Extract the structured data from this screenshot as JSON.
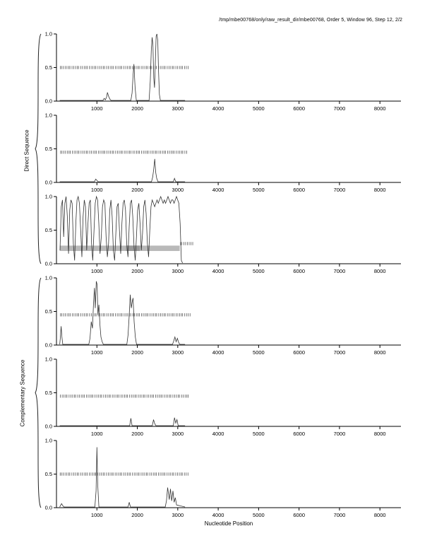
{
  "header": {
    "title": "/tmp/mbe00768/only/raw_result_dir/mbe00768, Order 5, Window 96, Step 12, 2/2"
  },
  "groups": [
    {
      "label": "Direct Sequence"
    },
    {
      "label": "Complementary Sequence"
    }
  ],
  "axis": {
    "x_label": "Nucleotide Position"
  },
  "chart_data": [
    {
      "name": "direct-frame-1",
      "type": "line",
      "x_range": [
        0,
        8520
      ],
      "y_range": [
        0,
        1
      ],
      "x_ticks": [
        1000,
        2000,
        3000,
        4000,
        5000,
        6000,
        7000,
        8000
      ],
      "y_ticks": [
        0,
        0.5,
        1
      ],
      "marker_row": {
        "y": 0.5,
        "x": [
          95,
          128,
          171,
          215,
          259,
          301,
          333,
          385,
          429,
          473,
          515,
          547,
          599,
          643,
          687,
          729,
          761,
          813,
          857,
          901,
          943,
          975,
          1027,
          1071,
          1115,
          1157,
          1189,
          1241,
          1285,
          1329,
          1371,
          1403,
          1455,
          1499,
          1543,
          1585,
          1617,
          1669,
          1713,
          1757,
          1799,
          1831,
          1883,
          1927,
          1971,
          2013,
          2045,
          2097,
          2141,
          2185,
          2227,
          2259,
          2311,
          2355,
          2399,
          2441,
          2473,
          2525,
          2569,
          2613,
          2655,
          2687,
          2739,
          2783,
          2827,
          2869,
          2901,
          2953,
          2997,
          3041,
          3083,
          3115,
          3167,
          3211,
          3255
        ]
      },
      "series": [
        {
          "name": "coding-potential",
          "x": [
            80,
            1150,
            1180,
            1210,
            1240,
            1260,
            1290,
            1320,
            1350,
            1840,
            1870,
            1895,
            1915,
            1945,
            1975,
            2290,
            2320,
            2345,
            2365,
            2385,
            2405,
            2425,
            2445,
            2465,
            2485,
            2505,
            2525,
            2545,
            2570,
            3180
          ],
          "y": [
            0.01,
            0.01,
            0.04,
            0.02,
            0.06,
            0.13,
            0.07,
            0.03,
            0.01,
            0.01,
            0.12,
            0.38,
            0.55,
            0.2,
            0.01,
            0.01,
            0.3,
            0.75,
            0.95,
            0.85,
            0.35,
            0.2,
            0.55,
            0.97,
            1.0,
            0.9,
            0.45,
            0.1,
            0.01,
            0.01
          ]
        }
      ]
    },
    {
      "name": "direct-frame-2",
      "type": "line",
      "x_range": [
        0,
        8520
      ],
      "y_range": [
        0,
        1
      ],
      "x_ticks": [
        1000,
        2000,
        3000,
        4000,
        5000,
        6000,
        7000,
        8000
      ],
      "y_ticks": [
        0,
        0.5,
        1
      ],
      "marker_row": {
        "y": 0.45,
        "x": [
          104,
          137,
          180,
          224,
          268,
          310,
          342,
          394,
          438,
          482,
          524,
          556,
          608,
          652,
          696,
          738,
          770,
          822,
          866,
          910,
          952,
          984,
          1036,
          1080,
          1124,
          1166,
          1198,
          1250,
          1294,
          1338,
          1380,
          1412,
          1464,
          1508,
          1552,
          1594,
          1626,
          1678,
          1722,
          1766,
          1808,
          1840,
          1892,
          1936,
          1980,
          2022,
          2054,
          2106,
          2150,
          2194,
          2236,
          2268,
          2320,
          2364,
          2408,
          2450,
          2482,
          2534,
          2578,
          2622,
          2664,
          2696,
          2748,
          2792,
          2836,
          2878,
          2910,
          2962,
          3006,
          3050,
          3092,
          3124,
          3176,
          3220
        ]
      },
      "series": [
        {
          "name": "coding-potential",
          "x": [
            80,
            940,
            970,
            1000,
            1030,
            2350,
            2380,
            2405,
            2430,
            2455,
            2480,
            2510,
            2890,
            2920,
            2950,
            3180
          ],
          "y": [
            0.01,
            0.01,
            0.05,
            0.03,
            0.01,
            0.01,
            0.08,
            0.2,
            0.35,
            0.15,
            0.06,
            0.01,
            0.01,
            0.06,
            0.01,
            0.01
          ]
        }
      ]
    },
    {
      "name": "direct-frame-3",
      "type": "line",
      "x_range": [
        0,
        8520
      ],
      "y_range": [
        0,
        1
      ],
      "x_ticks": [
        1000,
        2000,
        3000,
        4000,
        5000,
        6000,
        7000,
        8000
      ],
      "y_ticks": [
        0,
        0.5,
        1
      ],
      "marker_row": {
        "y": 0.3,
        "x": [
          3066,
          3102,
          3150,
          3194,
          3238,
          3282,
          3326,
          3370
        ]
      },
      "bands": [
        {
          "x0": 82,
          "x1": 3050,
          "y0": 0.19,
          "y1": 0.27,
          "color": "#b9b9b9"
        },
        {
          "x0": 1720,
          "x1": 2060,
          "y0": 0.19,
          "y1": 0.27,
          "color": "#9a9a9a"
        }
      ],
      "series": [
        {
          "name": "coding-potential",
          "x_start": 88,
          "x_step": 30,
          "y": [
            0.2,
            0.85,
            0.95,
            0.4,
            0.9,
            1.0,
            0.7,
            0.15,
            0.8,
            0.95,
            0.9,
            0.3,
            0.05,
            0.6,
            0.95,
            1.0,
            0.9,
            0.5,
            0.1,
            0.7,
            0.95,
            0.85,
            0.2,
            0.6,
            0.9,
            0.95,
            0.3,
            0.05,
            0.5,
            0.9,
            1.0,
            0.95,
            0.6,
            0.15,
            0.4,
            0.85,
            0.95,
            0.9,
            0.4,
            0.1,
            0.3,
            0.8,
            0.95,
            0.7,
            0.2,
            0.05,
            0.45,
            0.85,
            0.9,
            0.5,
            0.15,
            0.6,
            0.9,
            0.95,
            0.8,
            0.3,
            0.1,
            0.55,
            0.9,
            0.95,
            0.7,
            0.25,
            0.05,
            0.4,
            0.8,
            0.9,
            0.6,
            0.2,
            0.45,
            0.85,
            0.95,
            0.75,
            0.3,
            0.1,
            0.5,
            0.85,
            0.95,
            0.9,
            0.85,
            0.9,
            0.95,
            0.9,
            0.95,
            1.0,
            0.95,
            0.9,
            0.95,
            0.9,
            0.95,
            1.0,
            0.95,
            0.9,
            0.95,
            0.95,
            0.9,
            0.95,
            1.0,
            0.95,
            0.9,
            0.6,
            0.05,
            0.01
          ]
        }
      ]
    },
    {
      "name": "complementary-frame-1",
      "type": "line",
      "x_range": [
        0,
        8520
      ],
      "y_range": [
        0,
        1
      ],
      "x_ticks": [
        1000,
        2000,
        3000,
        4000,
        5000,
        6000,
        7000,
        8000
      ],
      "y_ticks": [
        0,
        0.5,
        1
      ],
      "marker_row": {
        "y": 0.45,
        "x": [
          100,
          133,
          176,
          220,
          264,
          306,
          338,
          390,
          434,
          478,
          520,
          552,
          604,
          648,
          692,
          734,
          766,
          818,
          862,
          906,
          948,
          980,
          1032,
          1076,
          1120,
          1162,
          1194,
          1246,
          1290,
          1334,
          1376,
          1408,
          1460,
          1504,
          1548,
          1590,
          1622,
          1674,
          1718,
          1762,
          1804,
          1836,
          1888,
          1932,
          1976,
          2018,
          2050,
          2102,
          2146,
          2190,
          2232,
          2264,
          2316,
          2360,
          2404,
          2446,
          2478,
          2530,
          2574,
          2618,
          2660,
          2692,
          2744,
          2788,
          2832,
          2874,
          2906,
          2958,
          3002,
          3046,
          3088,
          3120,
          3172,
          3216,
          3260,
          3304
        ]
      },
      "series": [
        {
          "name": "coding-potential",
          "x": [
            80,
            95,
            115,
            135,
            155,
            800,
            830,
            860,
            890,
            915,
            940,
            960,
            985,
            1005,
            1025,
            1050,
            1075,
            1100,
            1130,
            1160,
            1740,
            1770,
            1800,
            1825,
            1850,
            1875,
            1895,
            1920,
            1950,
            1980,
            2870,
            2900,
            2930,
            2960,
            2990,
            3020,
            3050,
            3180
          ],
          "y": [
            0.01,
            0.1,
            0.28,
            0.12,
            0.01,
            0.01,
            0.1,
            0.35,
            0.25,
            0.6,
            0.85,
            0.55,
            0.95,
            0.9,
            0.45,
            0.6,
            0.3,
            0.12,
            0.05,
            0.01,
            0.01,
            0.15,
            0.45,
            0.75,
            0.55,
            0.65,
            0.7,
            0.35,
            0.12,
            0.01,
            0.01,
            0.06,
            0.12,
            0.05,
            0.1,
            0.04,
            0.01,
            0.01
          ]
        }
      ]
    },
    {
      "name": "complementary-frame-2",
      "type": "line",
      "x_range": [
        0,
        8520
      ],
      "y_range": [
        0,
        1
      ],
      "x_ticks": [
        1000,
        2000,
        3000,
        4000,
        5000,
        6000,
        7000,
        8000
      ],
      "y_ticks": [
        0,
        0.5,
        1
      ],
      "marker_row": {
        "y": 0.45,
        "x": [
          98,
          142,
          186,
          228,
          260,
          312,
          356,
          400,
          442,
          474,
          526,
          570,
          614,
          656,
          688,
          740,
          784,
          828,
          870,
          902,
          954,
          998,
          1042,
          1084,
          1116,
          1168,
          1212,
          1256,
          1298,
          1330,
          1382,
          1426,
          1470,
          1512,
          1544,
          1596,
          1640,
          1684,
          1726,
          1758,
          1810,
          1854,
          1898,
          1940,
          1972,
          2024,
          2068,
          2112,
          2154,
          2186,
          2238,
          2282,
          2326,
          2368,
          2400,
          2452,
          2496,
          2540,
          2582,
          2614,
          2666,
          2710,
          2754,
          2796,
          2828,
          2880,
          2924,
          2968,
          3010,
          3042,
          3094,
          3138,
          3182,
          3224,
          3256
        ]
      },
      "series": [
        {
          "name": "coding-potential",
          "x": [
            80,
            1810,
            1840,
            1870,
            2370,
            2400,
            2430,
            2460,
            2890,
            2920,
            2950,
            2980,
            3010,
            3180
          ],
          "y": [
            0.01,
            0.01,
            0.12,
            0.01,
            0.01,
            0.1,
            0.04,
            0.01,
            0.01,
            0.13,
            0.05,
            0.1,
            0.01,
            0.01
          ]
        }
      ]
    },
    {
      "name": "complementary-frame-3",
      "type": "line",
      "x_range": [
        0,
        8520
      ],
      "y_range": [
        0,
        1
      ],
      "x_ticks": [
        1000,
        2000,
        3000,
        4000,
        5000,
        6000,
        7000,
        8000
      ],
      "y_ticks": [
        0,
        0.5,
        1
      ],
      "marker_row": {
        "y": 0.5,
        "x": [
          92,
          125,
          168,
          212,
          256,
          298,
          330,
          382,
          426,
          470,
          512,
          544,
          596,
          640,
          684,
          726,
          758,
          810,
          854,
          898,
          940,
          972,
          1024,
          1068,
          1112,
          1154,
          1186,
          1238,
          1282,
          1326,
          1368,
          1400,
          1452,
          1496,
          1540,
          1582,
          1614,
          1666,
          1710,
          1754,
          1796,
          1828,
          1880,
          1924,
          1968,
          2010,
          2042,
          2094,
          2138,
          2182,
          2224,
          2256,
          2308,
          2352,
          2396,
          2438,
          2470,
          2522,
          2566,
          2610,
          2652,
          2684,
          2736,
          2780,
          2824,
          2866,
          2898,
          2950,
          2994,
          3038,
          3080,
          3112,
          3164,
          3208,
          3252
        ]
      },
      "series": [
        {
          "name": "coding-potential",
          "x": [
            80,
            125,
            155,
            185,
            950,
            980,
            1000,
            1020,
            1050,
            1770,
            1800,
            1830,
            2690,
            2720,
            2750,
            2790,
            2820,
            2850,
            2880,
            2910,
            2940,
            2970,
            3180
          ],
          "y": [
            0.01,
            0.06,
            0.03,
            0.01,
            0.01,
            0.25,
            0.9,
            0.35,
            0.01,
            0.01,
            0.08,
            0.01,
            0.01,
            0.1,
            0.3,
            0.12,
            0.28,
            0.1,
            0.25,
            0.08,
            0.15,
            0.04,
            0.01
          ]
        }
      ]
    }
  ]
}
